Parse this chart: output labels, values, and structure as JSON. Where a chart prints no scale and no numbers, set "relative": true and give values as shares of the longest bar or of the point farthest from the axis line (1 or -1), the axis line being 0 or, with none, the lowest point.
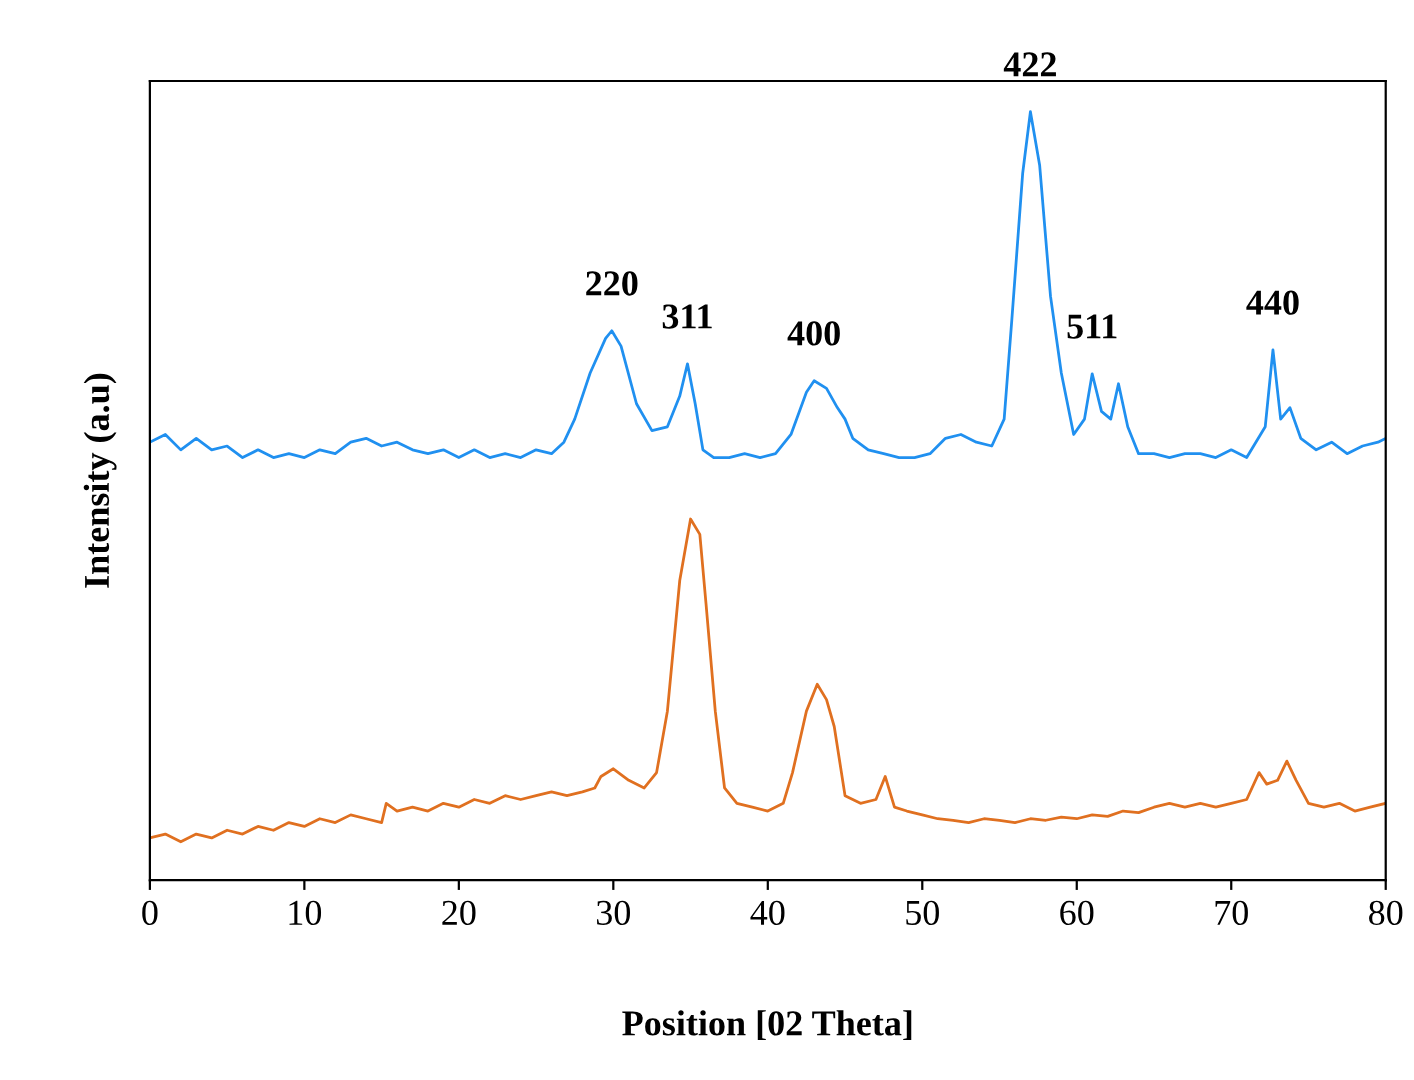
{
  "chart_data": {
    "type": "line",
    "relative": true,
    "xlabel": "Position [02 Theta]",
    "ylabel": "Intensity (a.u)",
    "xlim": [
      0,
      80
    ],
    "xticks": [
      0,
      10,
      20,
      30,
      40,
      50,
      60,
      70,
      80
    ],
    "grid": false,
    "legend": false,
    "marker": "none",
    "line_style": "solid",
    "series": [
      {
        "color": "#2090f0",
        "x": [
          0,
          1,
          2,
          3,
          4,
          5,
          6,
          7,
          8,
          9,
          10,
          11,
          12,
          13,
          14,
          15,
          16,
          17,
          18,
          19,
          20,
          21,
          22,
          23,
          24,
          25,
          26,
          26.8,
          27.5,
          28.5,
          29.5,
          29.9,
          30.5,
          31.5,
          32.5,
          33.5,
          34.3,
          34.8,
          35.3,
          35.8,
          36.5,
          37.5,
          38.5,
          39.5,
          40.5,
          41.5,
          42.5,
          43,
          43.8,
          44.5,
          45,
          45.5,
          46.5,
          47.5,
          48.5,
          49.5,
          50.5,
          51.5,
          52.5,
          53.5,
          54.5,
          55.3,
          55.8,
          56.5,
          57,
          57.6,
          58.3,
          59,
          59.8,
          60.5,
          61,
          61.6,
          62.2,
          62.7,
          63.3,
          64,
          65,
          66,
          67,
          68,
          69,
          70,
          71,
          72.2,
          72.7,
          73.2,
          73.8,
          74.5,
          75.5,
          76.5,
          77.5,
          78.5,
          79.5,
          80
        ],
        "values": [
          0.57,
          0.58,
          0.56,
          0.575,
          0.56,
          0.565,
          0.55,
          0.56,
          0.55,
          0.555,
          0.55,
          0.56,
          0.555,
          0.57,
          0.575,
          0.565,
          0.57,
          0.56,
          0.555,
          0.56,
          0.55,
          0.56,
          0.55,
          0.555,
          0.55,
          0.56,
          0.555,
          0.57,
          0.6,
          0.66,
          0.705,
          0.715,
          0.695,
          0.62,
          0.585,
          0.59,
          0.63,
          0.672,
          0.62,
          0.56,
          0.55,
          0.55,
          0.555,
          0.55,
          0.555,
          0.58,
          0.635,
          0.65,
          0.64,
          0.615,
          0.6,
          0.575,
          0.56,
          0.555,
          0.55,
          0.55,
          0.555,
          0.575,
          0.58,
          0.57,
          0.565,
          0.6,
          0.73,
          0.92,
          1.0,
          0.93,
          0.76,
          0.66,
          0.58,
          0.6,
          0.659,
          0.61,
          0.6,
          0.646,
          0.59,
          0.555,
          0.555,
          0.55,
          0.555,
          0.555,
          0.55,
          0.56,
          0.55,
          0.59,
          0.69,
          0.6,
          0.615,
          0.575,
          0.56,
          0.57,
          0.555,
          0.565,
          0.57,
          0.575
        ]
      },
      {
        "color": "#e07020",
        "x": [
          0,
          1,
          2,
          3,
          4,
          5,
          6,
          7,
          8,
          9,
          10,
          11,
          12,
          13,
          14,
          15,
          15.3,
          16,
          17,
          18,
          19,
          20,
          21,
          22,
          23,
          24,
          25,
          26,
          27,
          28,
          28.8,
          29.2,
          30,
          31,
          32,
          32.8,
          33.5,
          34.3,
          35,
          35.6,
          36,
          36.6,
          37.2,
          38,
          39,
          40,
          41,
          41.6,
          42.5,
          43.2,
          43.8,
          44.3,
          45,
          46,
          47,
          47.6,
          48.2,
          49,
          50,
          51,
          52,
          53,
          54,
          55,
          56,
          57,
          58,
          59,
          60,
          61,
          62,
          63,
          64,
          65,
          66,
          67,
          68,
          69,
          70,
          71,
          71.8,
          72.3,
          73,
          73.6,
          74.2,
          75,
          76,
          77,
          78,
          79,
          80
        ],
        "values": [
          0.055,
          0.06,
          0.05,
          0.06,
          0.055,
          0.065,
          0.06,
          0.07,
          0.065,
          0.075,
          0.07,
          0.08,
          0.075,
          0.085,
          0.08,
          0.075,
          0.1,
          0.09,
          0.095,
          0.09,
          0.1,
          0.095,
          0.105,
          0.1,
          0.11,
          0.105,
          0.11,
          0.115,
          0.11,
          0.115,
          0.12,
          0.135,
          0.145,
          0.13,
          0.12,
          0.14,
          0.22,
          0.39,
          0.47,
          0.45,
          0.36,
          0.22,
          0.12,
          0.1,
          0.095,
          0.09,
          0.1,
          0.14,
          0.22,
          0.255,
          0.235,
          0.2,
          0.11,
          0.1,
          0.105,
          0.135,
          0.095,
          0.09,
          0.085,
          0.08,
          0.078,
          0.075,
          0.08,
          0.078,
          0.075,
          0.08,
          0.078,
          0.082,
          0.08,
          0.085,
          0.083,
          0.09,
          0.088,
          0.095,
          0.1,
          0.095,
          0.1,
          0.095,
          0.1,
          0.105,
          0.14,
          0.125,
          0.13,
          0.155,
          0.13,
          0.1,
          0.095,
          0.1,
          0.09,
          0.095,
          0.1
        ]
      }
    ],
    "annotations": [
      {
        "text": "220",
        "x": 29.9,
        "y": 0.715
      },
      {
        "text": "311",
        "x": 34.8,
        "y": 0.672
      },
      {
        "text": "400",
        "x": 43,
        "y": 0.65
      },
      {
        "text": "422",
        "x": 57,
        "y": 1.0
      },
      {
        "text": "511",
        "x": 61,
        "y": 0.659
      },
      {
        "text": "440",
        "x": 72.7,
        "y": 0.69
      }
    ]
  }
}
